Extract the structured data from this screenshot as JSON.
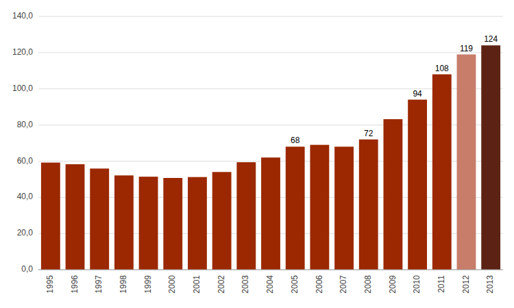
{
  "chart_data": {
    "type": "bar",
    "categories": [
      "1995",
      "1996",
      "1997",
      "1998",
      "1999",
      "2000",
      "2001",
      "2002",
      "2003",
      "2004",
      "2005",
      "2006",
      "2007",
      "2008",
      "2009",
      "2010",
      "2011",
      "2012",
      "2013"
    ],
    "values": [
      59.2,
      58.3,
      55.9,
      52.1,
      51.4,
      50.7,
      51.2,
      54.0,
      59.4,
      62.0,
      68.0,
      69.0,
      68.0,
      72.0,
      83.2,
      94.0,
      108.0,
      119.0,
      124.0
    ],
    "value_labels": [
      null,
      null,
      null,
      null,
      null,
      null,
      null,
      null,
      null,
      null,
      "68",
      null,
      null,
      "72",
      null,
      "94",
      "108",
      "119",
      "124"
    ],
    "colors": [
      "#9B2800",
      "#9B2800",
      "#9B2800",
      "#9B2800",
      "#9B2800",
      "#9B2800",
      "#9B2800",
      "#9B2800",
      "#9B2800",
      "#9B2800",
      "#9B2800",
      "#9B2800",
      "#9B2800",
      "#9B2800",
      "#9B2800",
      "#9B2800",
      "#9B2800",
      "#C87D6A",
      "#5C2315"
    ],
    "ylim": [
      0,
      140
    ],
    "yticks": [
      {
        "value": 0,
        "label": "0,0"
      },
      {
        "value": 20,
        "label": "20,0"
      },
      {
        "value": 40,
        "label": "40,0"
      },
      {
        "value": 60,
        "label": "60,0"
      },
      {
        "value": 80,
        "label": "80,0"
      },
      {
        "value": 100,
        "label": "100,0"
      },
      {
        "value": 120,
        "label": "120,0"
      },
      {
        "value": 140,
        "label": "140,0"
      }
    ],
    "grid": true
  }
}
